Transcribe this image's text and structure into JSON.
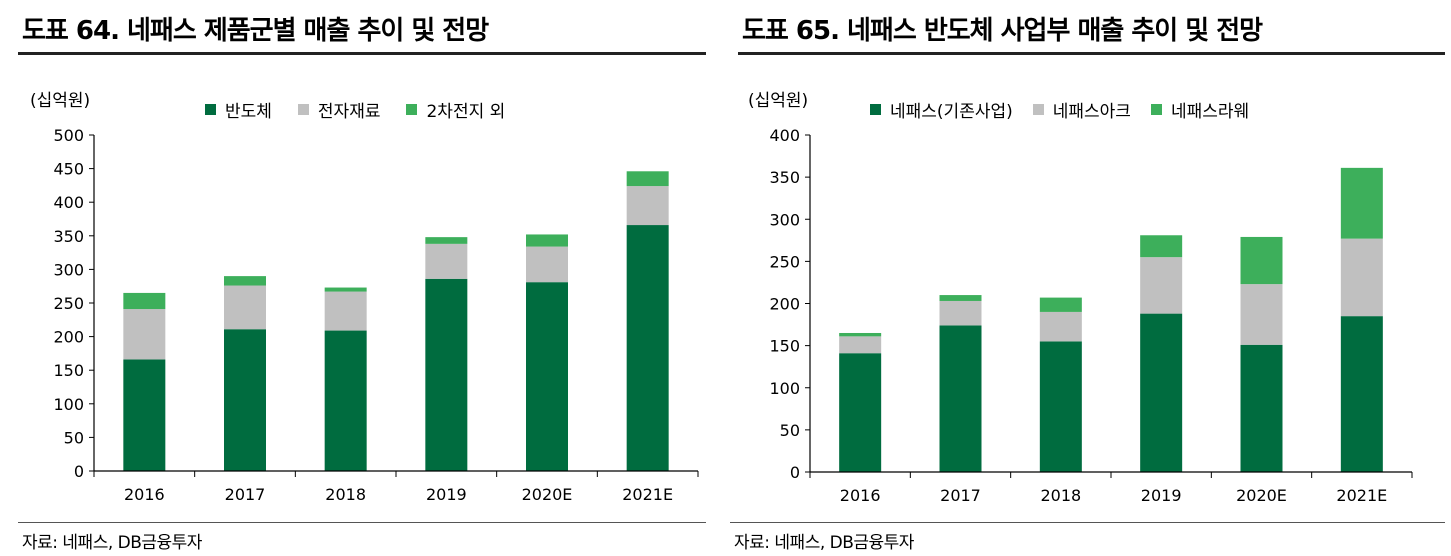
{
  "colors": {
    "semiconductor": "#006c3f",
    "electronic_materials": "#c0c0c0",
    "battery": "#3daf5b",
    "axis": "#000000"
  },
  "left": {
    "title": "도표 64. 네패스 제품군별 매출 추이 및 전망",
    "unit": "(십억원)",
    "source": "자료:  네패스, DB금융투자",
    "legend": [
      "반도체",
      "전자재료",
      "2차전지 외"
    ],
    "chart_data": {
      "type": "bar",
      "stacked": true,
      "categories": [
        "2016",
        "2017",
        "2018",
        "2019",
        "2020E",
        "2021E"
      ],
      "ylim": [
        0,
        500
      ],
      "yticks": [
        0,
        50,
        100,
        150,
        200,
        250,
        300,
        350,
        400,
        450,
        500
      ],
      "ylabel": "(십억원)",
      "legend_position": "top",
      "grid": false,
      "series": [
        {
          "name": "반도체",
          "values": [
            166,
            211,
            209,
            286,
            281,
            366
          ]
        },
        {
          "name": "전자재료",
          "values": [
            75,
            65,
            58,
            52,
            53,
            58
          ]
        },
        {
          "name": "2차전지 외",
          "values": [
            24,
            14,
            6,
            10,
            18,
            22
          ]
        }
      ]
    }
  },
  "right": {
    "title": "도표 65. 네패스 반도체 사업부 매출 추이 및 전망",
    "unit": "(십억원)",
    "source": "자료:  네패스, DB금융투자",
    "legend": [
      "네패스(기존사업)",
      "네패스아크",
      "네패스라웨"
    ],
    "chart_data": {
      "type": "bar",
      "stacked": true,
      "categories": [
        "2016",
        "2017",
        "2018",
        "2019",
        "2020E",
        "2021E"
      ],
      "ylim": [
        0,
        400
      ],
      "yticks": [
        0,
        50,
        100,
        150,
        200,
        250,
        300,
        350,
        400
      ],
      "ylabel": "(십억원)",
      "legend_position": "top",
      "grid": false,
      "series": [
        {
          "name": "네패스(기존사업)",
          "values": [
            141,
            174,
            155,
            188,
            151,
            185
          ]
        },
        {
          "name": "네패스아크",
          "values": [
            20,
            29,
            35,
            67,
            72,
            92
          ]
        },
        {
          "name": "네패스라웨",
          "values": [
            4,
            7,
            17,
            26,
            56,
            84
          ]
        }
      ]
    }
  }
}
